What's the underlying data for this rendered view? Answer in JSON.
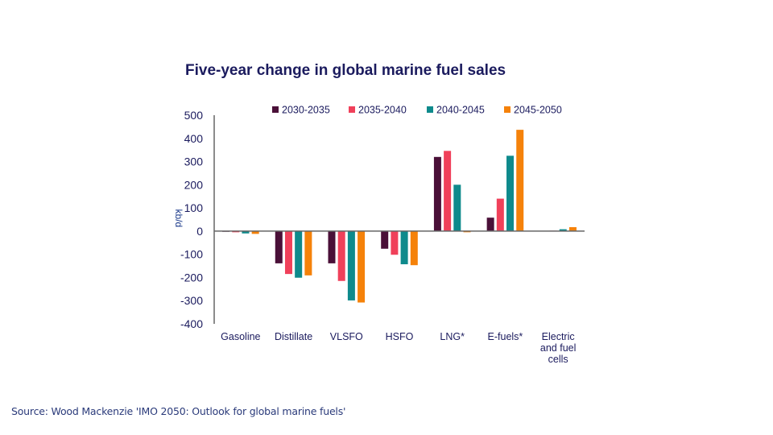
{
  "source": "Source: Wood Mackenzie 'IMO 2050: Outlook for global marine fuels'",
  "chart_data": {
    "type": "bar",
    "title": "Five-year change in global marine fuel sales",
    "xlabel": "",
    "ylabel": "kb/d",
    "ylim": [
      -400,
      500
    ],
    "yticks": [
      500,
      400,
      300,
      200,
      100,
      0,
      -100,
      -200,
      -300,
      -400
    ],
    "grid": false,
    "legend_position": "top",
    "categories": [
      [
        "Gasoline"
      ],
      [
        "Distillate"
      ],
      [
        "VLSFO"
      ],
      [
        "HSFO"
      ],
      [
        "LNG*"
      ],
      [
        "E-fuels*"
      ],
      [
        "Electric",
        "and fuel",
        "cells"
      ]
    ],
    "series": [
      {
        "name": "2030-2035",
        "color": "#4a1038",
        "values": [
          -3,
          -139,
          -139,
          -76,
          320,
          58,
          0
        ]
      },
      {
        "name": "2035-2040",
        "color": "#f0405a",
        "values": [
          -5,
          -185,
          -215,
          -102,
          346,
          140,
          2
        ]
      },
      {
        "name": "2040-2045",
        "color": "#0e8a8c",
        "values": [
          -10,
          -201,
          -299,
          -143,
          200,
          325,
          8
        ]
      },
      {
        "name": "2045-2050",
        "color": "#f5820a",
        "values": [
          -12,
          -191,
          -308,
          -147,
          -5,
          437,
          17
        ]
      }
    ]
  }
}
